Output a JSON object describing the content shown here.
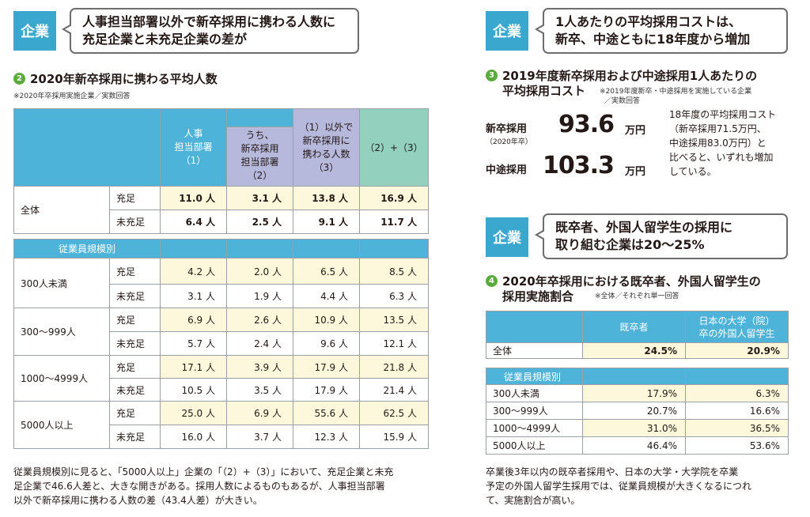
{
  "left": {
    "tag": "企業",
    "headline_lines": [
      "人事担当部署以外で新卒採用に携わる人数に",
      "充足企業と未充足企業の差が"
    ],
    "section": {
      "number": "2",
      "title": "2020年新卒採用に携わる平均人数",
      "note": "※2020年卒採用実施企業／実数回答"
    },
    "table": {
      "headers": {
        "h1": [
          "人事",
          "担当部署",
          "（1）"
        ],
        "h2": [
          "うち、",
          "新卒採用",
          "担当部署",
          "（2）"
        ],
        "h3": [
          "（1）以外で",
          "新卒採用に",
          "携わる人数",
          "（3）"
        ],
        "h4": "（2）+（3）"
      },
      "overall_label": "全体",
      "overall": [
        {
          "status": "充足",
          "values": [
            "11.0 人",
            "3.1 人",
            "13.8 人",
            "16.9 人"
          ]
        },
        {
          "status": "未充足",
          "values": [
            "6.4 人",
            "2.5 人",
            "9.1 人",
            "11.7 人"
          ]
        }
      ],
      "size_header": "従業員規模別",
      "groups": [
        {
          "label": "300人未満",
          "rows": [
            {
              "status": "充足",
              "values": [
                "4.2 人",
                "2.0 人",
                "6.5 人",
                "8.5 人"
              ]
            },
            {
              "status": "未充足",
              "values": [
                "3.1 人",
                "1.9 人",
                "4.4 人",
                "6.3 人"
              ]
            }
          ]
        },
        {
          "label": "300～999人",
          "rows": [
            {
              "status": "充足",
              "values": [
                "6.9 人",
                "2.6 人",
                "10.9 人",
                "13.5 人"
              ]
            },
            {
              "status": "未充足",
              "values": [
                "5.7 人",
                "2.4 人",
                "9.6 人",
                "12.1 人"
              ]
            }
          ]
        },
        {
          "label": "1000～4999人",
          "rows": [
            {
              "status": "充足",
              "values": [
                "17.1 人",
                "3.9 人",
                "17.9 人",
                "21.8 人"
              ]
            },
            {
              "status": "未充足",
              "values": [
                "10.5 人",
                "3.5 人",
                "17.9 人",
                "21.4 人"
              ]
            }
          ]
        },
        {
          "label": "5000人以上",
          "rows": [
            {
              "status": "充足",
              "values": [
                "25.0 人",
                "6.9 人",
                "55.6 人",
                "62.5 人"
              ]
            },
            {
              "status": "未充足",
              "values": [
                "16.0 人",
                "3.7 人",
                "12.3 人",
                "15.9 人"
              ]
            }
          ]
        }
      ]
    },
    "paragraph_lines": [
      "従業員規模別に見ると、「5000人以上」企業の「（2）+（3）」において、充足企業と未充",
      "足企業で46.6人差と、大きな開きがある。採用人数によるものもあるが、人事担当部署",
      "以外で新卒採用に携わる人数の差（43.4人差）が大きい。"
    ]
  },
  "right_top": {
    "tag": "企業",
    "headline_lines": [
      "1人あたりの平均採用コストは、",
      "新卒、中途ともに18年度から増加"
    ],
    "section": {
      "number": "3",
      "title_line1": "2019年度新卒採用および中途採用1人あたりの",
      "title_line2": "平均採用コスト",
      "note_lines": [
        "※2019年度新卒・中途採用を実施している企業",
        "／実数回答"
      ]
    },
    "new_grad": {
      "label": "新卒採用",
      "sub": "（2020年卒）",
      "value": "93.6",
      "unit": "万円"
    },
    "mid_career": {
      "label": "中途採用",
      "value": "103.3",
      "unit": "万円"
    },
    "comment_lines": [
      "18年度の平均採用コスト",
      "（新卒採用71.5万円、",
      "中途採用83.0万円）と",
      "比べると、いずれも増加",
      "している。"
    ]
  },
  "right_bottom": {
    "tag": "企業",
    "headline_lines": [
      "既卒者、外国人留学生の採用に",
      "取り組む企業は20～25%"
    ],
    "section": {
      "number": "4",
      "title_line1": "2020年卒採用における既卒者、外国人留学生の",
      "title_line2": "採用実施割合",
      "note": "※全体／それぞれ単一回答"
    },
    "table": {
      "headers": {
        "h1": "既卒者",
        "h2": [
          "日本の大学（院）",
          "卒の外国人留学生"
        ]
      },
      "overall": {
        "label": "全体",
        "values": [
          "24.5%",
          "20.9%"
        ]
      },
      "size_header": "従業員規模別",
      "rows": [
        {
          "label": "300人未満",
          "values": [
            "17.9%",
            "6.3%"
          ]
        },
        {
          "label": "300～999人",
          "values": [
            "20.7%",
            "16.6%"
          ]
        },
        {
          "label": "1000～4999人",
          "values": [
            "31.0%",
            "36.5%"
          ]
        },
        {
          "label": "5000人以上",
          "values": [
            "46.4%",
            "53.6%"
          ]
        }
      ]
    },
    "paragraph_lines": [
      "卒業後3年以内の既卒者採用や、日本の大学・大学院を卒業",
      "予定の外国人留学生採用では、従業員規模が大きくなるにつれ",
      "て、実施割合が高い。"
    ]
  }
}
